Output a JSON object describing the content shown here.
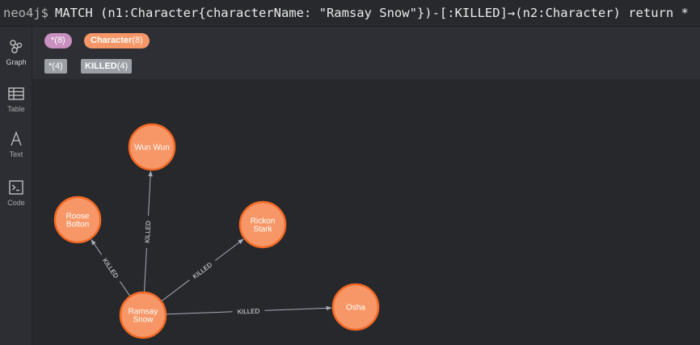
{
  "command": {
    "prompt": "neo4j$",
    "query": "MATCH (n1:Character{characterName: \"Ramsay Snow\"})-[:KILLED]→(n2:Character) return *"
  },
  "sidebar": {
    "items": [
      {
        "label": "Graph",
        "icon": "graph-icon"
      },
      {
        "label": "Table",
        "icon": "table-icon"
      },
      {
        "label": "Text",
        "icon": "text-icon"
      },
      {
        "label": "Code",
        "icon": "code-icon"
      }
    ]
  },
  "legend": {
    "nodes": [
      {
        "label": "*",
        "count": "(8)",
        "color": "#c990c0"
      },
      {
        "label": "Character",
        "count": "(8)",
        "color": "#f79767"
      }
    ],
    "relationships": [
      {
        "label": "*",
        "count": "(4)"
      },
      {
        "label": "KILLED",
        "count": "(4)"
      }
    ]
  },
  "graph": {
    "colors": {
      "node_fill": "#f79767",
      "node_stroke": "#f36924",
      "edge": "#a5abb6"
    },
    "nodes": [
      {
        "id": "ramsay",
        "lines": [
          "Ramsay",
          "Snow"
        ]
      },
      {
        "id": "wunwun",
        "lines": [
          "Wun Wun"
        ]
      },
      {
        "id": "roose",
        "lines": [
          "Roose",
          "Bolton"
        ]
      },
      {
        "id": "rickon",
        "lines": [
          "Rickon",
          "Stark"
        ]
      },
      {
        "id": "osha",
        "lines": [
          "Osha"
        ]
      }
    ],
    "edges": [
      {
        "source": "ramsay",
        "target": "wunwun",
        "label": "KILLED"
      },
      {
        "source": "ramsay",
        "target": "roose",
        "label": "KILLED"
      },
      {
        "source": "ramsay",
        "target": "rickon",
        "label": "KILLED"
      },
      {
        "source": "ramsay",
        "target": "osha",
        "label": "KILLED"
      }
    ]
  }
}
